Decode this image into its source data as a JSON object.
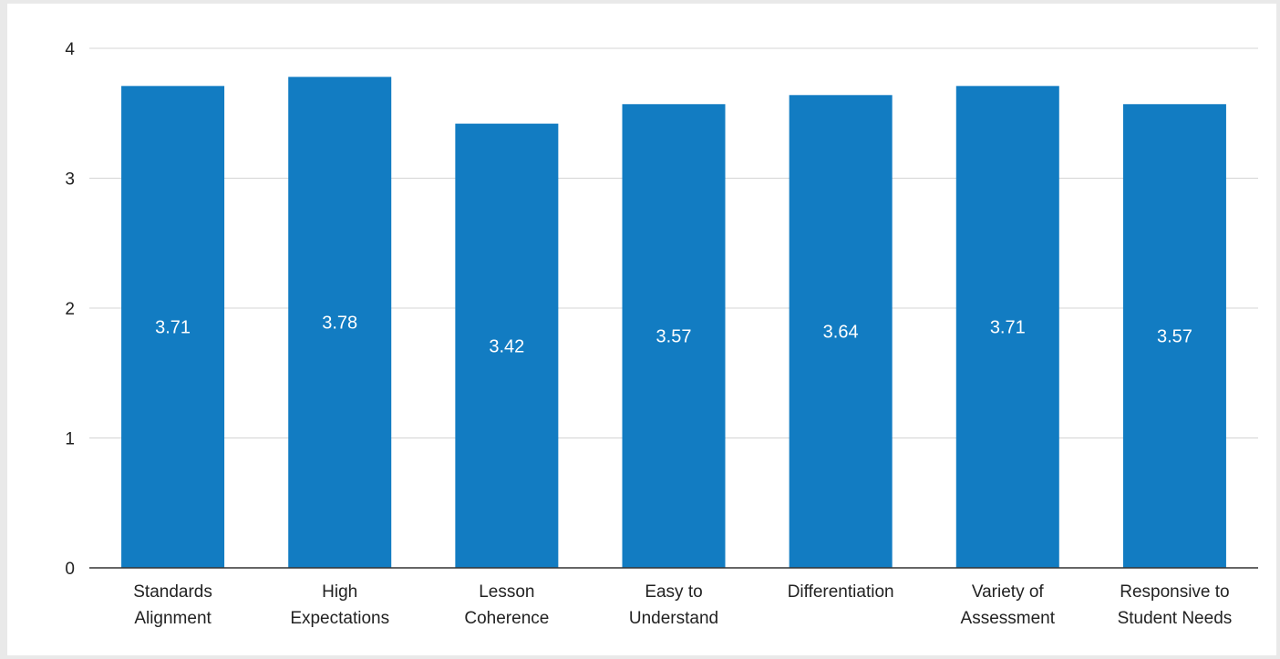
{
  "chart_data": {
    "type": "bar",
    "categories": [
      [
        "Standards",
        "Alignment"
      ],
      [
        "High",
        "Expectations"
      ],
      [
        "Lesson",
        "Coherence"
      ],
      [
        "Easy to",
        "Understand"
      ],
      [
        "Differentiation"
      ],
      [
        "Variety of",
        "Assessment"
      ],
      [
        "Responsive to",
        "Student Needs"
      ]
    ],
    "values": [
      3.71,
      3.78,
      3.42,
      3.57,
      3.64,
      3.71,
      3.57
    ],
    "value_labels": [
      "3.71",
      "3.78",
      "3.42",
      "3.57",
      "3.64",
      "3.71",
      "3.57"
    ],
    "yticks": [
      "0",
      "1",
      "2",
      "3",
      "4"
    ],
    "ylim": [
      0,
      4
    ],
    "title": "",
    "xlabel": "",
    "ylabel": "",
    "grid": true,
    "legend": "none",
    "colors": {
      "bar": "#127cc2",
      "grid": "#d4d4d4",
      "axis": "#333333"
    }
  }
}
